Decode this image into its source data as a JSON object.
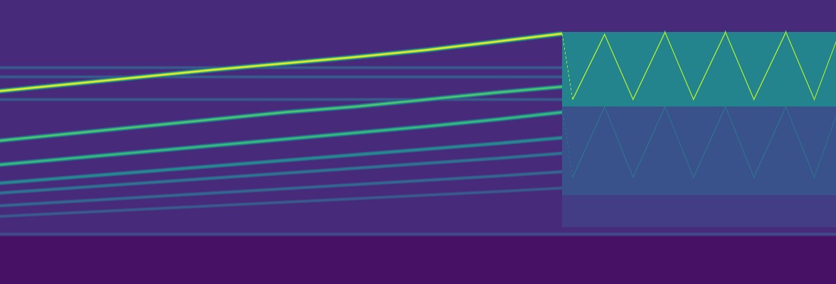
{
  "chart_data": {
    "type": "spectrogram",
    "tick_labels": false,
    "color": "viridis",
    "xlim": [
      0,
      1175
    ],
    "ylim": [
      0,
      400
    ],
    "clim": [
      0,
      1
    ],
    "background": [
      {
        "x": [
          0,
          1175
        ],
        "y": [
          0,
          400
        ],
        "magnitude": 0.12
      },
      {
        "x": [
          0,
          1175
        ],
        "y": [
          0,
          70
        ],
        "magnitude": 0.05
      },
      {
        "x": [
          790,
          1175
        ],
        "y": [
          250,
          355
        ],
        "magnitude": 0.45
      },
      {
        "x": [
          790,
          1175
        ],
        "y": [
          125,
          250
        ],
        "magnitude": 0.25
      },
      {
        "x": [
          790,
          1175
        ],
        "y": [
          80,
          125
        ],
        "magnitude": 0.18
      }
    ],
    "series": [
      {
        "x": [
          0,
          100,
          200,
          300,
          400,
          500,
          600,
          700,
          790
        ],
        "values": [
          272,
          282,
          292,
          302,
          311,
          320,
          330,
          342,
          353
        ],
        "magnitude": 1.0
      },
      {
        "x": [
          0,
          100,
          200,
          300,
          400,
          500,
          600,
          700,
          790
        ],
        "values": [
          202,
          212,
          222,
          232,
          242,
          250,
          260,
          270,
          278
        ],
        "magnitude": 0.75
      },
      {
        "x": [
          0,
          100,
          200,
          300,
          400,
          500,
          600,
          700,
          790
        ],
        "values": [
          168,
          177,
          186,
          195,
          204,
          213,
          222,
          232,
          242
        ],
        "magnitude": 0.7
      },
      {
        "x": [
          0,
          100,
          200,
          300,
          400,
          500,
          600,
          700,
          790
        ],
        "values": [
          142,
          150,
          158,
          166,
          174,
          182,
          190,
          198,
          206
        ],
        "magnitude": 0.5
      },
      {
        "x": [
          0,
          100,
          200,
          300,
          400,
          500,
          600,
          700,
          790
        ],
        "values": [
          128,
          135,
          142,
          149,
          156,
          163,
          170,
          177,
          184
        ],
        "magnitude": 0.4
      },
      {
        "x": [
          0,
          100,
          200,
          300,
          400,
          500,
          600,
          700,
          790
        ],
        "values": [
          110,
          116,
          122,
          128,
          134,
          140,
          146,
          152,
          158
        ],
        "magnitude": 0.35
      },
      {
        "x": [
          0,
          100,
          200,
          300,
          400,
          500,
          600,
          700,
          790
        ],
        "values": [
          95,
          100,
          105,
          110,
          115,
          120,
          125,
          130,
          135
        ],
        "magnitude": 0.3
      },
      {
        "x": [
          0,
          790
        ],
        "values": [
          305,
          305
        ],
        "magnitude": 0.3
      },
      {
        "x": [
          0,
          790
        ],
        "values": [
          292,
          292
        ],
        "magnitude": 0.3
      },
      {
        "x": [
          0,
          790
        ],
        "values": [
          260,
          260
        ],
        "magnitude": 0.3
      },
      {
        "x": [
          0,
          1175
        ],
        "values": [
          70,
          70
        ],
        "magnitude": 0.25
      },
      {
        "x": [
          790,
          805,
          850,
          890,
          935,
          975,
          1020,
          1060,
          1105,
          1145,
          1175
        ],
        "values": [
          355,
          260,
          352,
          260,
          355,
          260,
          355,
          260,
          355,
          260,
          340
        ],
        "magnitude": 0.95
      },
      {
        "x": [
          790,
          805,
          850,
          890,
          935,
          975,
          1020,
          1060,
          1105,
          1145,
          1175
        ],
        "values": [
          250,
          150,
          250,
          150,
          250,
          150,
          250,
          150,
          250,
          150,
          235
        ],
        "magnitude": 0.4
      }
    ]
  }
}
